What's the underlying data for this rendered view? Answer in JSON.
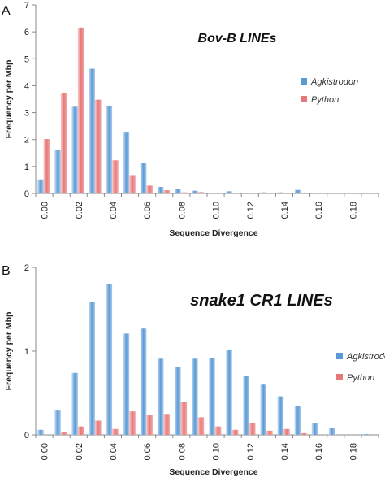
{
  "chart_data": [
    {
      "type": "bar",
      "panel_label": "A",
      "title": "Bov-B LINEs",
      "xlabel": "Sequence Divergence",
      "ylabel": "Frequency per Mbp",
      "ylim": [
        0,
        7
      ],
      "yticks": [
        "0",
        "1",
        "2",
        "3",
        "4",
        "5",
        "6",
        "7"
      ],
      "xtick_labels": [
        "0.00",
        "0.02",
        "0.04",
        "0.06",
        "0.08",
        "0.10",
        "0.12",
        "0.14",
        "0.16",
        "0.18"
      ],
      "legend_position": "right",
      "categories": [
        "0.00",
        "0.01",
        "0.02",
        "0.03",
        "0.04",
        "0.05",
        "0.06",
        "0.07",
        "0.08",
        "0.09",
        "0.10",
        "0.11",
        "0.12",
        "0.13",
        "0.14",
        "0.15",
        "0.16",
        "0.17",
        "0.18",
        "0.19"
      ],
      "series": [
        {
          "name": "Agkistrodon",
          "color": "#5b9bd5",
          "values": [
            0.52,
            1.62,
            3.22,
            4.63,
            3.26,
            2.26,
            1.14,
            0.24,
            0.17,
            0.1,
            0.02,
            0.08,
            0.03,
            0.04,
            0.04,
            0.13,
            0.01,
            0.01,
            0.01,
            0.0
          ]
        },
        {
          "name": "Python",
          "color": "#e87878",
          "values": [
            2.02,
            3.73,
            6.16,
            3.48,
            1.23,
            0.68,
            0.29,
            0.12,
            0.04,
            0.05,
            0.02,
            0.01,
            0.02,
            0.01,
            0.01,
            0.01,
            0.0,
            0.01,
            0.01,
            0.01
          ]
        }
      ]
    },
    {
      "type": "bar",
      "panel_label": "B",
      "title": "snake1 CR1 LINEs",
      "xlabel": "Sequence Divergence",
      "ylabel": "Frequency per Mbp",
      "ylim": [
        0,
        2
      ],
      "yticks": [
        "0",
        "1",
        "2"
      ],
      "xtick_labels": [
        "0.00",
        "0.02",
        "0.04",
        "0.06",
        "0.08",
        "0.10",
        "0.12",
        "0.14",
        "0.16",
        "0.18"
      ],
      "legend_position": "right",
      "categories": [
        "0.00",
        "0.01",
        "0.02",
        "0.03",
        "0.04",
        "0.05",
        "0.06",
        "0.07",
        "0.08",
        "0.09",
        "0.10",
        "0.11",
        "0.12",
        "0.13",
        "0.14",
        "0.15",
        "0.16",
        "0.17",
        "0.18",
        "0.19"
      ],
      "series": [
        {
          "name": "Agkistrodon",
          "color": "#5b9bd5",
          "values": [
            0.06,
            0.29,
            0.74,
            1.59,
            1.8,
            1.21,
            1.27,
            0.91,
            0.81,
            0.91,
            0.92,
            1.01,
            0.7,
            0.6,
            0.46,
            0.35,
            0.14,
            0.08,
            0.0,
            0.01
          ]
        },
        {
          "name": "Python",
          "color": "#e87878",
          "values": [
            0.0,
            0.03,
            0.1,
            0.17,
            0.07,
            0.28,
            0.24,
            0.25,
            0.39,
            0.21,
            0.1,
            0.06,
            0.14,
            0.05,
            0.07,
            0.02,
            0.0,
            0.0,
            0.0,
            0.0
          ]
        }
      ]
    }
  ]
}
